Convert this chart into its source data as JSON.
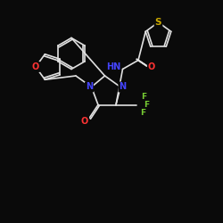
{
  "bg_color": "#0a0a0a",
  "bond_color": "#e0e0e0",
  "atom_colors": {
    "O": "#ff3333",
    "N": "#4444ff",
    "S": "#ccaa00",
    "F": "#77cc33",
    "H": "#e0e0e0",
    "C": "#e0e0e0"
  },
  "font_size": 7.0,
  "bond_lw": 1.2
}
